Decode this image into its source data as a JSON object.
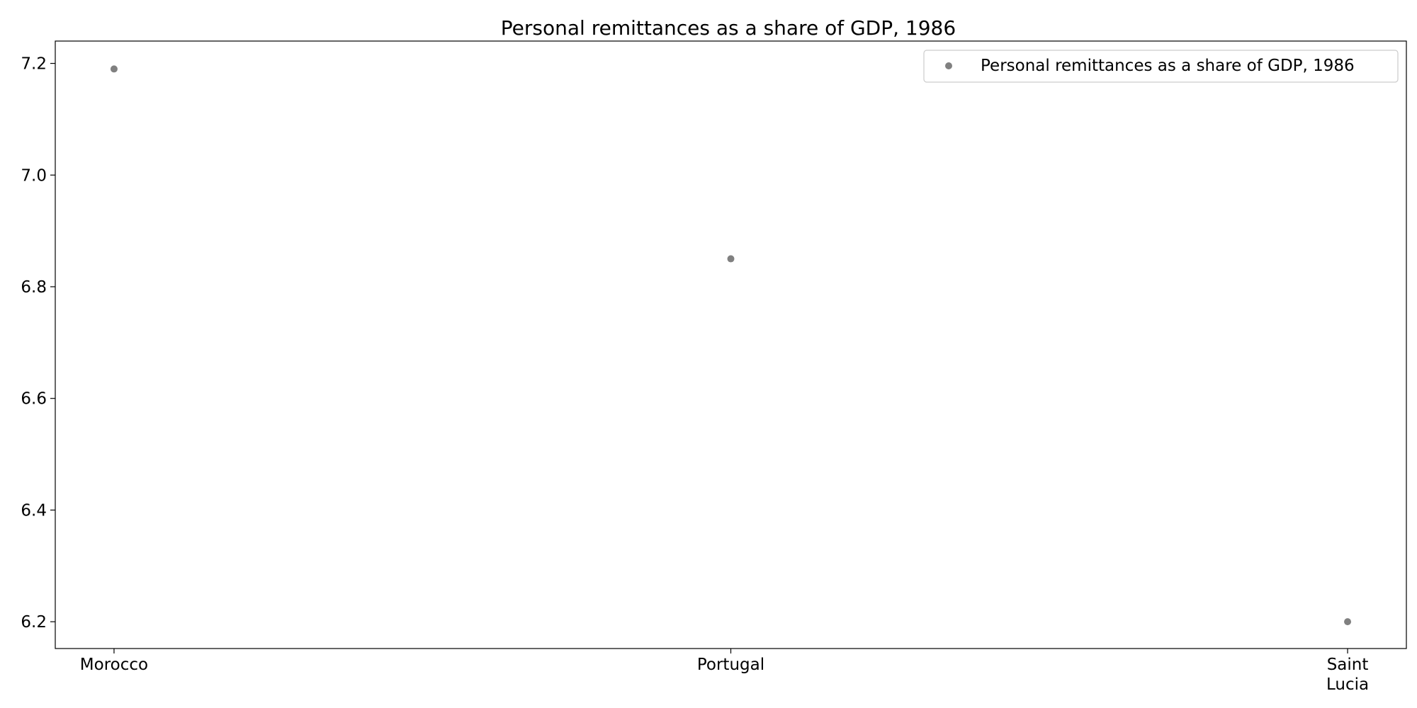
{
  "chart_data": {
    "type": "scatter",
    "title": "Personal remittances as a share of GDP, 1986",
    "xlabel": "",
    "ylabel": "",
    "categories": [
      "Morocco",
      "Portugal",
      "Saint\nLucia"
    ],
    "series": [
      {
        "name": "Personal remittances as a share of GDP, 1986",
        "values": [
          7.19,
          6.85,
          6.2
        ],
        "color": "#808080"
      }
    ],
    "ylim": [
      6.152,
      7.24
    ],
    "yticks": [
      "6.2",
      "6.4",
      "6.6",
      "6.8",
      "7.0",
      "7.2"
    ],
    "grid": false,
    "legend_position": "top-right"
  }
}
